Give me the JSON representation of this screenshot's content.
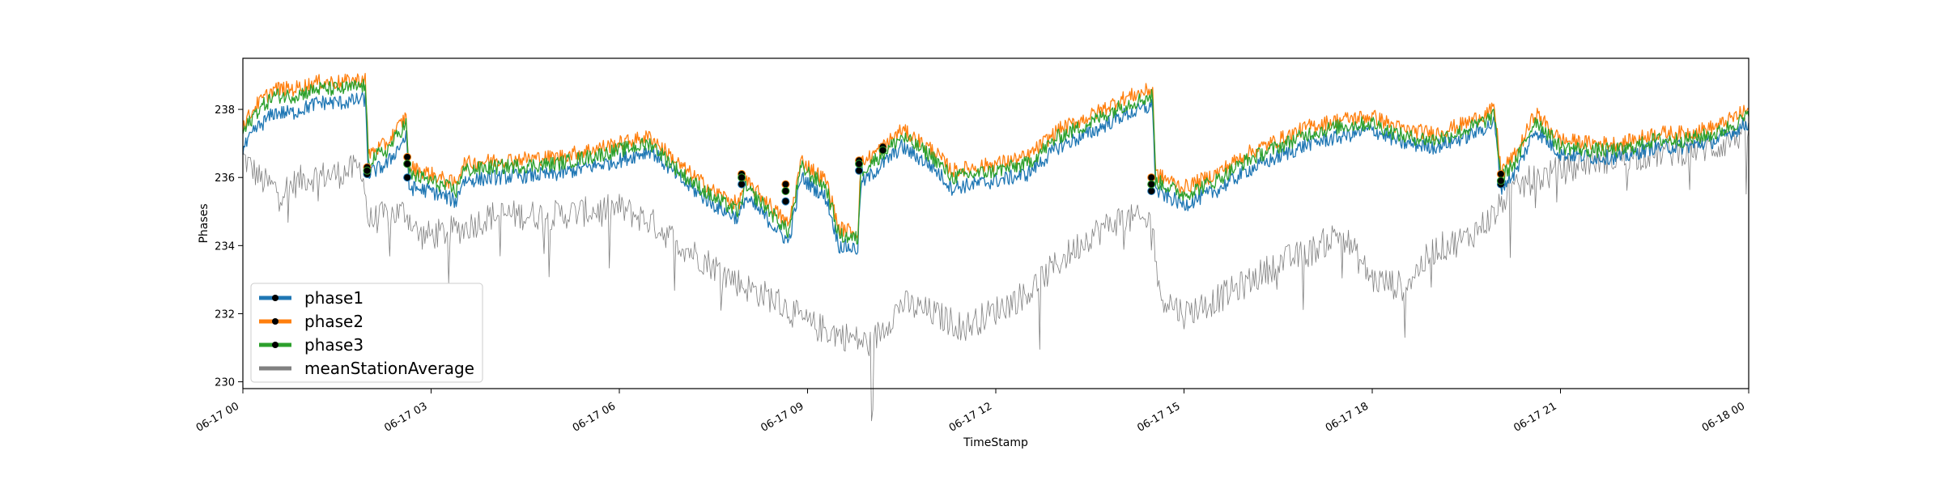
{
  "chart_data": {
    "type": "line",
    "xlabel": "TimeStamp",
    "ylabel": "Phases",
    "x_range": [
      "2019-06-17 00:00",
      "2019-06-18 00:00"
    ],
    "ylim": [
      229.8,
      239.5
    ],
    "grid": false,
    "legend_position": "lower-left",
    "x_ticks": [
      "06-17 00",
      "06-17 03",
      "06-17 06",
      "06-17 09",
      "06-17 12",
      "06-17 15",
      "06-17 18",
      "06-17 21",
      "06-18 00"
    ],
    "y_ticks": [
      230,
      232,
      234,
      236,
      238
    ],
    "series": [
      {
        "name": "phase1",
        "color": "#1f77b4",
        "x_hours": [
          0,
          0.2,
          0.5,
          0.8,
          1.2,
          1.6,
          1.95,
          2.0,
          2.3,
          2.6,
          2.65,
          3.0,
          3.4,
          3.5,
          4.0,
          5.0,
          6.0,
          6.5,
          7.0,
          7.5,
          7.9,
          8.0,
          8.3,
          8.7,
          8.9,
          9.3,
          9.5,
          9.8,
          9.85,
          10.2,
          10.5,
          11.0,
          11.3,
          12.0,
          12.5,
          13.0,
          13.5,
          14.0,
          14.5,
          14.55,
          15.0,
          15.5,
          16.0,
          16.5,
          17.0,
          17.5,
          18.0,
          18.5,
          19.0,
          19.5,
          19.95,
          20.05,
          20.3,
          20.6,
          21.0,
          21.5,
          22.0,
          22.5,
          23.0,
          23.5,
          23.8,
          24.0
        ],
        "values": [
          236.8,
          237.4,
          237.9,
          237.9,
          238.2,
          238.2,
          238.3,
          236.1,
          236.4,
          237.2,
          235.7,
          235.6,
          235.3,
          235.9,
          236.0,
          236.1,
          236.5,
          236.8,
          235.9,
          235.2,
          234.8,
          235.4,
          234.9,
          234.1,
          236.0,
          235.4,
          234.0,
          233.9,
          235.8,
          236.4,
          236.9,
          236.3,
          235.7,
          235.9,
          236.1,
          236.9,
          237.3,
          237.8,
          238.1,
          235.6,
          235.2,
          235.6,
          236.2,
          236.6,
          237.0,
          237.2,
          237.4,
          237.0,
          236.9,
          237.2,
          237.6,
          235.7,
          236.2,
          237.4,
          236.7,
          236.6,
          236.6,
          236.9,
          236.9,
          237.1,
          237.4,
          237.6
        ]
      },
      {
        "name": "phase2",
        "color": "#ff7f0e",
        "x_hours": [
          0,
          0.2,
          0.5,
          0.8,
          1.2,
          1.6,
          1.95,
          2.0,
          2.3,
          2.6,
          2.65,
          3.0,
          3.4,
          3.5,
          4.0,
          5.0,
          6.0,
          6.5,
          7.0,
          7.5,
          7.9,
          8.0,
          8.3,
          8.7,
          8.9,
          9.3,
          9.5,
          9.8,
          9.85,
          10.2,
          10.5,
          11.0,
          11.3,
          12.0,
          12.5,
          13.0,
          13.5,
          14.0,
          14.5,
          14.55,
          15.0,
          15.5,
          16.0,
          16.5,
          17.0,
          17.5,
          18.0,
          18.5,
          19.0,
          19.5,
          19.95,
          20.05,
          20.3,
          20.6,
          21.0,
          21.5,
          22.0,
          22.5,
          23.0,
          23.5,
          23.8,
          24.0
        ],
        "values": [
          237.5,
          238.1,
          238.6,
          238.6,
          238.8,
          238.8,
          238.9,
          236.7,
          237.0,
          237.8,
          236.3,
          236.1,
          235.8,
          236.4,
          236.5,
          236.6,
          237.0,
          237.2,
          236.3,
          235.6,
          235.2,
          235.9,
          235.4,
          234.6,
          236.5,
          235.9,
          234.5,
          234.4,
          236.4,
          236.9,
          237.4,
          236.8,
          236.2,
          236.4,
          236.6,
          237.4,
          237.8,
          238.3,
          238.6,
          236.1,
          235.7,
          236.1,
          236.7,
          237.1,
          237.5,
          237.7,
          237.8,
          237.4,
          237.3,
          237.6,
          238.0,
          236.2,
          236.7,
          237.9,
          237.1,
          237.0,
          237.0,
          237.3,
          237.3,
          237.5,
          237.8,
          238.0
        ]
      },
      {
        "name": "phase3",
        "color": "#2ca02c",
        "x_hours": [
          0,
          0.2,
          0.5,
          0.8,
          1.2,
          1.6,
          1.95,
          2.0,
          2.3,
          2.6,
          2.65,
          3.0,
          3.4,
          3.5,
          4.0,
          5.0,
          6.0,
          6.5,
          7.0,
          7.5,
          7.9,
          8.0,
          8.3,
          8.7,
          8.9,
          9.3,
          9.5,
          9.8,
          9.85,
          10.2,
          10.5,
          11.0,
          11.3,
          12.0,
          12.5,
          13.0,
          13.5,
          14.0,
          14.5,
          14.55,
          15.0,
          15.5,
          16.0,
          16.5,
          17.0,
          17.5,
          18.0,
          18.5,
          19.0,
          19.5,
          19.95,
          20.05,
          20.3,
          20.6,
          21.0,
          21.5,
          22.0,
          22.5,
          23.0,
          23.5,
          23.8,
          24.0
        ],
        "values": [
          237.3,
          237.9,
          238.4,
          238.4,
          238.6,
          238.6,
          238.7,
          236.5,
          236.8,
          237.6,
          236.1,
          235.9,
          235.6,
          236.2,
          236.3,
          236.4,
          236.8,
          237.0,
          236.1,
          235.4,
          235.0,
          235.7,
          235.2,
          234.4,
          236.3,
          235.7,
          234.3,
          234.2,
          236.2,
          236.7,
          237.2,
          236.6,
          236.0,
          236.2,
          236.4,
          237.2,
          237.6,
          238.1,
          238.4,
          235.9,
          235.5,
          235.9,
          236.5,
          236.9,
          237.3,
          237.5,
          237.6,
          237.2,
          237.1,
          237.4,
          237.8,
          236.0,
          236.5,
          237.7,
          236.9,
          236.8,
          236.8,
          237.1,
          237.1,
          237.3,
          237.6,
          237.8
        ]
      },
      {
        "name": "meanStationAverage",
        "color": "#808080",
        "x_hours": [
          0,
          0.3,
          0.6,
          1.0,
          1.5,
          1.9,
          2.0,
          2.3,
          2.6,
          2.8,
          3.0,
          3.5,
          4.0,
          5.0,
          6.0,
          6.5,
          7.0,
          7.5,
          8.0,
          8.5,
          9.0,
          9.5,
          10.0,
          10.5,
          11.0,
          11.5,
          12.0,
          12.5,
          13.0,
          13.5,
          14.0,
          14.5,
          14.6,
          15.0,
          15.5,
          16.0,
          16.5,
          17.0,
          17.5,
          18.0,
          18.5,
          19.0,
          19.5,
          20.0,
          20.1,
          20.5,
          21.0,
          21.5,
          22.0,
          22.5,
          23.0,
          23.5,
          24.0
        ],
        "values": [
          236.6,
          235.9,
          235.6,
          236.0,
          236.1,
          236.3,
          234.7,
          234.9,
          235.0,
          234.3,
          234.3,
          234.5,
          234.9,
          234.9,
          235.1,
          234.7,
          234.0,
          233.4,
          232.8,
          232.4,
          231.7,
          231.4,
          231.1,
          232.3,
          232.0,
          231.6,
          232.1,
          232.6,
          233.5,
          234.3,
          234.8,
          234.7,
          232.6,
          232.0,
          232.4,
          232.9,
          233.5,
          233.8,
          234.4,
          233.0,
          232.8,
          233.9,
          234.2,
          235.0,
          235.4,
          235.9,
          236.2,
          236.5,
          236.6,
          236.7,
          236.8,
          236.9,
          237.4
        ]
      }
    ],
    "markers": {
      "phase1": [
        [
          1.98,
          236.1
        ],
        [
          2.62,
          236.0
        ],
        [
          7.95,
          235.8
        ],
        [
          8.65,
          235.3
        ],
        [
          9.82,
          236.2
        ],
        [
          10.2,
          236.9
        ],
        [
          14.48,
          235.6
        ],
        [
          20.05,
          235.8
        ]
      ],
      "phase2": [
        [
          1.98,
          236.3
        ],
        [
          2.62,
          236.6
        ],
        [
          7.95,
          236.1
        ],
        [
          8.65,
          235.8
        ],
        [
          9.82,
          236.5
        ],
        [
          10.2,
          236.9
        ],
        [
          14.48,
          236.0
        ],
        [
          20.05,
          236.1
        ]
      ],
      "phase3": [
        [
          1.98,
          236.2
        ],
        [
          2.62,
          236.4
        ],
        [
          7.95,
          236.0
        ],
        [
          8.65,
          235.6
        ],
        [
          9.82,
          236.4
        ],
        [
          10.2,
          236.8
        ],
        [
          14.48,
          235.8
        ],
        [
          20.05,
          235.9
        ]
      ]
    }
  }
}
